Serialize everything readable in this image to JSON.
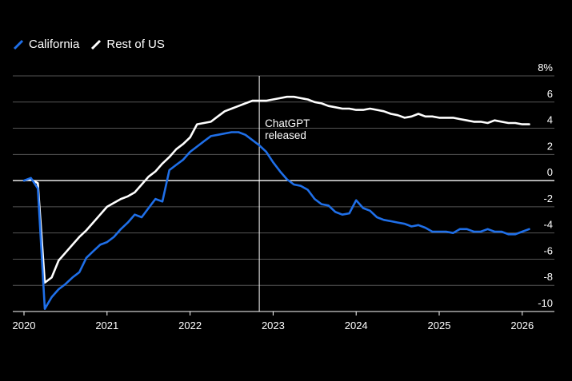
{
  "legend": [
    {
      "label": "California",
      "color": "#1f6fe8"
    },
    {
      "label": "Rest of US",
      "color": "#ffffff"
    }
  ],
  "chart_data": {
    "type": "line",
    "title": "",
    "xlabel": "",
    "ylabel": "",
    "y_unit": "%",
    "ylim": [
      -10,
      8
    ],
    "y_ticks": [
      8,
      6,
      4,
      2,
      0,
      -2,
      -4,
      -6,
      -8,
      -10
    ],
    "y_tick_labels": [
      "8%",
      "6",
      "4",
      "2",
      "0",
      "-2",
      "-4",
      "-6",
      "-8",
      "-10"
    ],
    "xlim": [
      "2020-01",
      "2026-03"
    ],
    "x_ticks": [
      "2020-01",
      "2021-01",
      "2022-01",
      "2023-01",
      "2024-01",
      "2025-01",
      "2026-01"
    ],
    "x_tick_labels": [
      "2020",
      "2021",
      "2022",
      "2023",
      "2024",
      "2025",
      "2026"
    ],
    "grid": true,
    "legend_position": "top-left",
    "x": [
      "2020-01",
      "2020-02",
      "2020-03",
      "2020-04",
      "2020-05",
      "2020-06",
      "2020-07",
      "2020-08",
      "2020-09",
      "2020-10",
      "2020-11",
      "2020-12",
      "2021-01",
      "2021-02",
      "2021-03",
      "2021-04",
      "2021-05",
      "2021-06",
      "2021-07",
      "2021-08",
      "2021-09",
      "2021-10",
      "2021-11",
      "2021-12",
      "2022-01",
      "2022-02",
      "2022-03",
      "2022-04",
      "2022-05",
      "2022-06",
      "2022-07",
      "2022-08",
      "2022-09",
      "2022-10",
      "2022-11",
      "2022-12",
      "2023-01",
      "2023-02",
      "2023-03",
      "2023-04",
      "2023-05",
      "2023-06",
      "2023-07",
      "2023-08",
      "2023-09",
      "2023-10",
      "2023-11",
      "2023-12",
      "2024-01",
      "2024-02",
      "2024-03",
      "2024-04",
      "2024-05",
      "2024-06",
      "2024-07",
      "2024-08",
      "2024-09",
      "2024-10",
      "2024-11",
      "2024-12",
      "2025-01",
      "2025-02",
      "2025-03",
      "2025-04",
      "2025-05",
      "2025-06",
      "2025-07",
      "2025-08",
      "2025-09",
      "2025-10",
      "2025-11",
      "2025-12",
      "2026-01",
      "2026-02"
    ],
    "series": [
      {
        "name": "California",
        "color": "#1f6fe8",
        "values": [
          0.0,
          0.2,
          -0.6,
          -9.8,
          -8.9,
          -8.3,
          -7.9,
          -7.4,
          -7.0,
          -5.9,
          -5.4,
          -4.9,
          -4.7,
          -4.3,
          -3.7,
          -3.2,
          -2.6,
          -2.8,
          -2.1,
          -1.4,
          -1.6,
          0.8,
          1.2,
          1.6,
          2.2,
          2.6,
          3.0,
          3.4,
          3.5,
          3.6,
          3.7,
          3.7,
          3.5,
          3.1,
          2.7,
          2.2,
          1.4,
          0.7,
          0.1,
          -0.3,
          -0.4,
          -0.7,
          -1.4,
          -1.8,
          -1.9,
          -2.4,
          -2.6,
          -2.5,
          -1.5,
          -2.1,
          -2.3,
          -2.8,
          -3.0,
          -3.1,
          -3.2,
          -3.3,
          -3.5,
          -3.4,
          -3.6,
          -3.9,
          -3.9,
          -3.9,
          -4.0,
          -3.7,
          -3.7,
          -3.9,
          -3.9,
          -3.7,
          -3.9,
          -3.9,
          -4.1,
          -4.1,
          -3.9,
          -3.7
        ]
      },
      {
        "name": "Rest of US",
        "color": "#ffffff",
        "values": [
          0.0,
          0.1,
          -0.2,
          -7.8,
          -7.4,
          -6.1,
          -5.5,
          -4.9,
          -4.3,
          -3.8,
          -3.2,
          -2.6,
          -2.0,
          -1.7,
          -1.4,
          -1.2,
          -0.9,
          -0.3,
          0.3,
          0.7,
          1.3,
          1.8,
          2.4,
          2.8,
          3.3,
          4.3,
          4.4,
          4.5,
          4.9,
          5.3,
          5.5,
          5.7,
          5.9,
          6.1,
          6.1,
          6.1,
          6.2,
          6.3,
          6.4,
          6.4,
          6.3,
          6.2,
          6.0,
          5.9,
          5.7,
          5.6,
          5.5,
          5.5,
          5.4,
          5.4,
          5.5,
          5.4,
          5.3,
          5.1,
          5.0,
          4.8,
          4.9,
          5.1,
          4.9,
          4.9,
          4.8,
          4.8,
          4.8,
          4.7,
          4.6,
          4.5,
          4.5,
          4.4,
          4.6,
          4.5,
          4.4,
          4.4,
          4.3,
          4.3
        ]
      }
    ],
    "annotations": [
      {
        "x": "2022-11",
        "text": "ChatGPT released",
        "lines": [
          "ChatGPT",
          "released"
        ]
      }
    ]
  }
}
